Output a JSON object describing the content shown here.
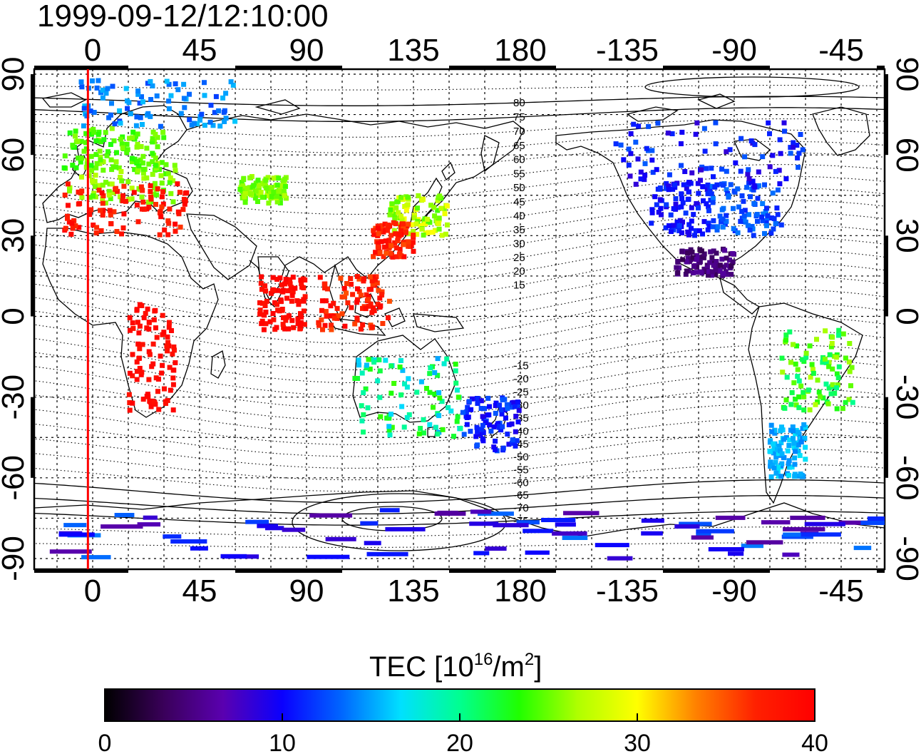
{
  "map": {
    "title": "1999-09-12/12:10:00",
    "projection": "equirectangular",
    "center_longitude": 150,
    "longitude_ticks": [
      "0",
      "45",
      "90",
      "135",
      "180",
      "-135",
      "-90",
      "-45"
    ],
    "longitude_tick_values": [
      0,
      45,
      90,
      135,
      180,
      225,
      270,
      315
    ],
    "latitude_ticks": [
      "90",
      "60",
      "30",
      "0",
      "-30",
      "-60",
      "-90"
    ],
    "latitude_tick_values": [
      90,
      60,
      30,
      0,
      -30,
      -60,
      -90
    ],
    "marker_line_longitude": -2,
    "marker_line_color": "#ff0000",
    "magnetic_latitude_labels": [
      "80",
      "75",
      "70",
      "65",
      "60",
      "55",
      "50",
      "45",
      "40",
      "35",
      "30",
      "25",
      "20",
      "15",
      "-15",
      "-20",
      "-25",
      "-30",
      "-35",
      "-40",
      "-45",
      "-50",
      "-55",
      "-60",
      "-65",
      "-70",
      "-75"
    ]
  },
  "colorbar": {
    "title": "TEC  [10",
    "title_exp": "16",
    "title_unit": "/m",
    "title_unit_exp": "2",
    "title_close": "]",
    "ticks": [
      "0",
      "10",
      "20",
      "30",
      "40"
    ],
    "min": 0,
    "max": 40,
    "colors": [
      "#000000",
      "#3a005a",
      "#5a00b0",
      "#0a00ff",
      "#0066ff",
      "#00e0ff",
      "#00ff90",
      "#20ff00",
      "#b0ff00",
      "#ffff00",
      "#ff8000",
      "#ff2000",
      "#ff0000"
    ]
  },
  "tec_clusters": [
    {
      "name": "europe-north",
      "lon": [
        -10,
        35
      ],
      "lat": [
        42,
        60
      ],
      "tec": [
        24,
        27
      ]
    },
    {
      "name": "europe-south",
      "lon": [
        -12,
        40
      ],
      "lat": [
        30,
        50
      ],
      "tec": [
        36,
        40
      ]
    },
    {
      "name": "scandinavia",
      "lon": [
        -12,
        30
      ],
      "lat": [
        55,
        70
      ],
      "tec": [
        23,
        26
      ]
    },
    {
      "name": "central-asia",
      "lon": [
        62,
        82
      ],
      "lat": [
        42,
        52
      ],
      "tec": [
        24,
        27
      ]
    },
    {
      "name": "japan",
      "lon": [
        125,
        150
      ],
      "lat": [
        30,
        45
      ],
      "tec": [
        24,
        30
      ]
    },
    {
      "name": "east-china",
      "lon": [
        118,
        135
      ],
      "lat": [
        22,
        35
      ],
      "tec": [
        35,
        40
      ]
    },
    {
      "name": "india-sea",
      "lon": [
        70,
        90
      ],
      "lat": [
        -5,
        15
      ],
      "tec": [
        38,
        40
      ]
    },
    {
      "name": "indonesia",
      "lon": [
        95,
        125
      ],
      "lat": [
        -5,
        15
      ],
      "tec": [
        35,
        40
      ]
    },
    {
      "name": "australia",
      "lon": [
        110,
        155
      ],
      "lat": [
        -45,
        -15
      ],
      "tec": [
        15,
        24
      ]
    },
    {
      "name": "new-zealand",
      "lon": [
        155,
        180
      ],
      "lat": [
        -50,
        -30
      ],
      "tec": [
        9,
        13
      ]
    },
    {
      "name": "north-america-west",
      "lon": [
        -125,
        -100
      ],
      "lat": [
        30,
        50
      ],
      "tec": [
        9,
        12
      ]
    },
    {
      "name": "north-america-east",
      "lon": [
        -100,
        -70
      ],
      "lat": [
        30,
        50
      ],
      "tec": [
        11,
        14
      ]
    },
    {
      "name": "canada",
      "lon": [
        -140,
        -60
      ],
      "lat": [
        48,
        72
      ],
      "tec": [
        8,
        13
      ]
    },
    {
      "name": "mexico",
      "lon": [
        -115,
        -90
      ],
      "lat": [
        15,
        25
      ],
      "tec": [
        3,
        6
      ]
    },
    {
      "name": "south-america",
      "lon": [
        -70,
        -40
      ],
      "lat": [
        -35,
        -5
      ],
      "tec": [
        20,
        27
      ]
    },
    {
      "name": "patagonia",
      "lon": [
        -75,
        -60
      ],
      "lat": [
        -60,
        -40
      ],
      "tec": [
        14,
        17
      ]
    },
    {
      "name": "africa",
      "lon": [
        15,
        35
      ],
      "lat": [
        -35,
        5
      ],
      "tec": [
        38,
        40
      ]
    },
    {
      "name": "arctic",
      "lon": [
        -5,
        60
      ],
      "lat": [
        70,
        88
      ],
      "tec": [
        12,
        16
      ]
    },
    {
      "name": "antarctic",
      "lon": [
        -20,
        345
      ],
      "lat": [
        -90,
        -72
      ],
      "tec": [
        6,
        14
      ]
    }
  ]
}
